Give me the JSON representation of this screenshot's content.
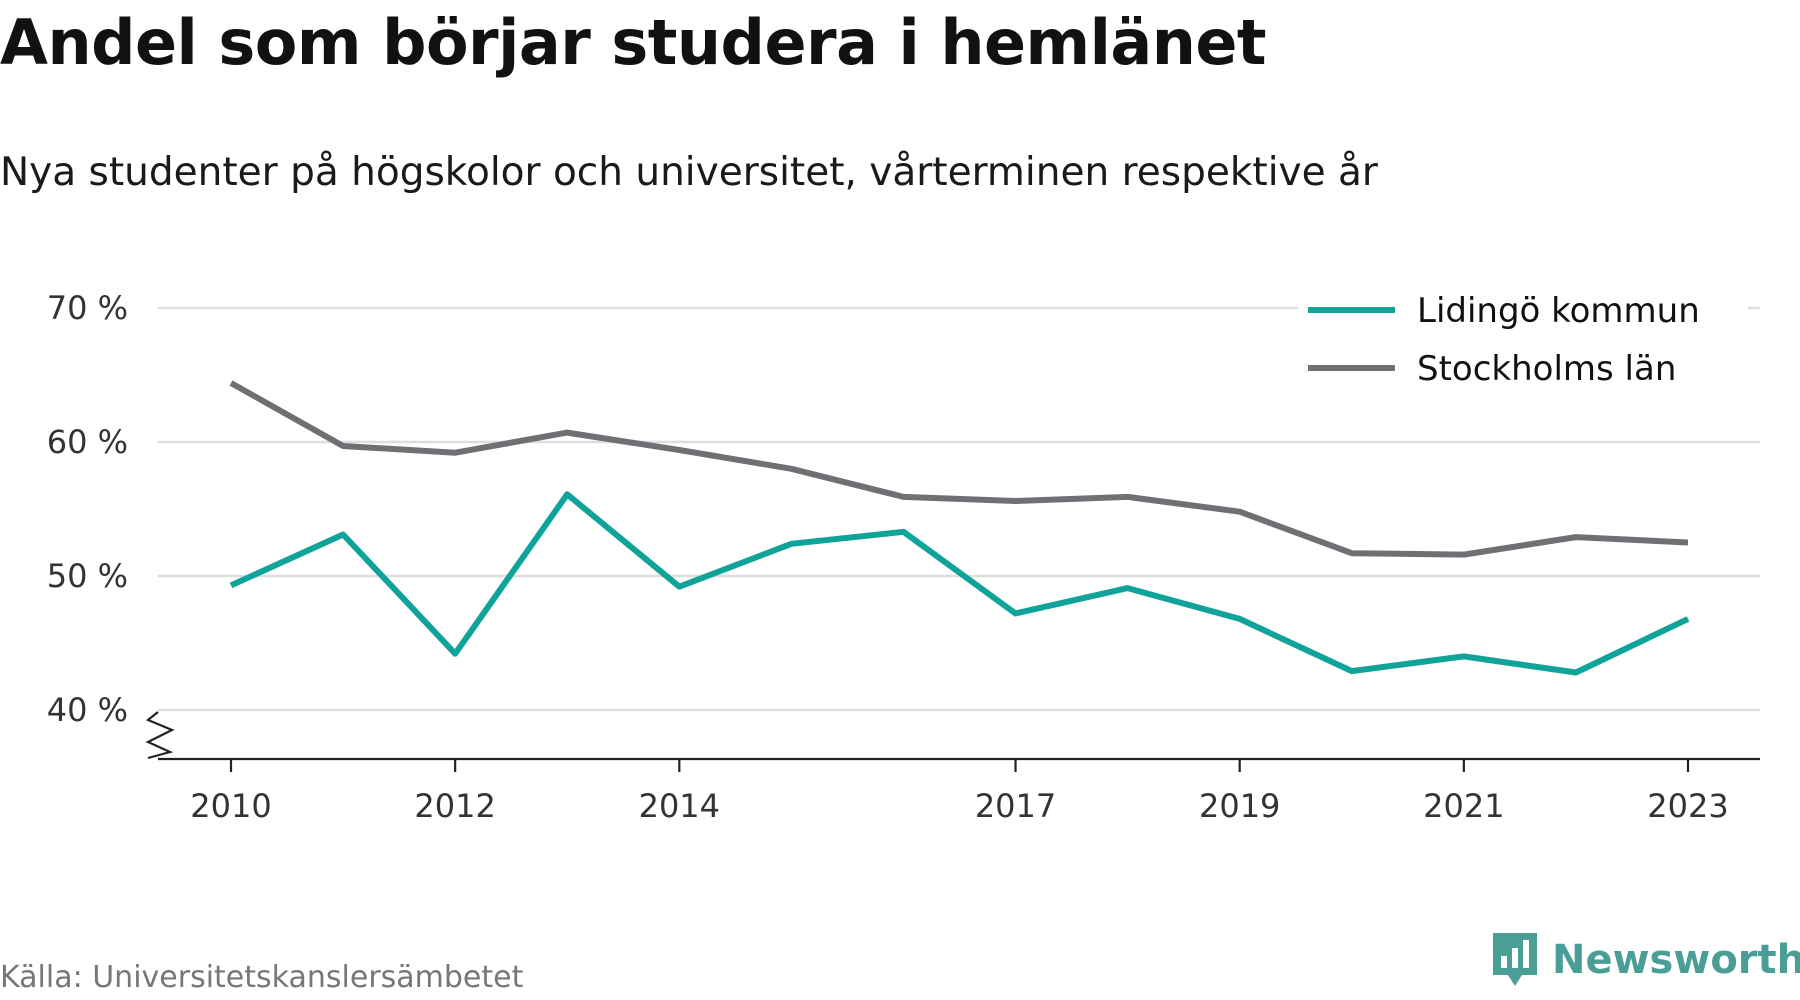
{
  "title": "Andel som börjar studera i hemlänet",
  "subtitle": "Nya studenter på högskolor och universitet, vårterminen respektive år",
  "source": "Källa: Universitetskanslersämbetet",
  "brand": {
    "name": "Newsworthy",
    "color": "#4a9e96",
    "logo_icon": "bar-chart-badge-icon"
  },
  "colors": {
    "series_lidingo": "#0fa39a",
    "series_stockholm": "#707074",
    "grid": "#dedede",
    "axis": "#222222",
    "tick_text": "#333333"
  },
  "chart_data": {
    "type": "line",
    "title": "Andel som börjar studera i hemlänet",
    "subtitle": "Nya studenter på högskolor och universitet, vårterminen respektive år",
    "xlabel": "",
    "ylabel": "",
    "x": [
      2010,
      2011,
      2012,
      2013,
      2014,
      2015,
      2016,
      2017,
      2018,
      2019,
      2020,
      2021,
      2022,
      2023
    ],
    "x_ticks": [
      "2010",
      "2012",
      "2014",
      "2017",
      "2019",
      "2021",
      "2023"
    ],
    "y_ticks": [
      "40 %",
      "50 %",
      "60 %",
      "70 %"
    ],
    "y_tick_values": [
      40,
      50,
      60,
      70
    ],
    "ylim": [
      36.3,
      70
    ],
    "y_axis_break": true,
    "grid": true,
    "legend_position": "top-right",
    "series": [
      {
        "name": "Lidingö kommun",
        "color": "#0fa39a",
        "values": [
          49.3,
          53.1,
          44.2,
          56.1,
          49.2,
          52.4,
          53.3,
          47.2,
          49.1,
          46.8,
          42.9,
          44.0,
          42.8,
          46.8
        ]
      },
      {
        "name": "Stockholms län",
        "color": "#707074",
        "values": [
          64.4,
          59.7,
          59.2,
          60.7,
          59.4,
          58.0,
          55.9,
          55.6,
          55.9,
          54.8,
          51.7,
          51.6,
          52.9,
          52.5
        ]
      }
    ]
  }
}
